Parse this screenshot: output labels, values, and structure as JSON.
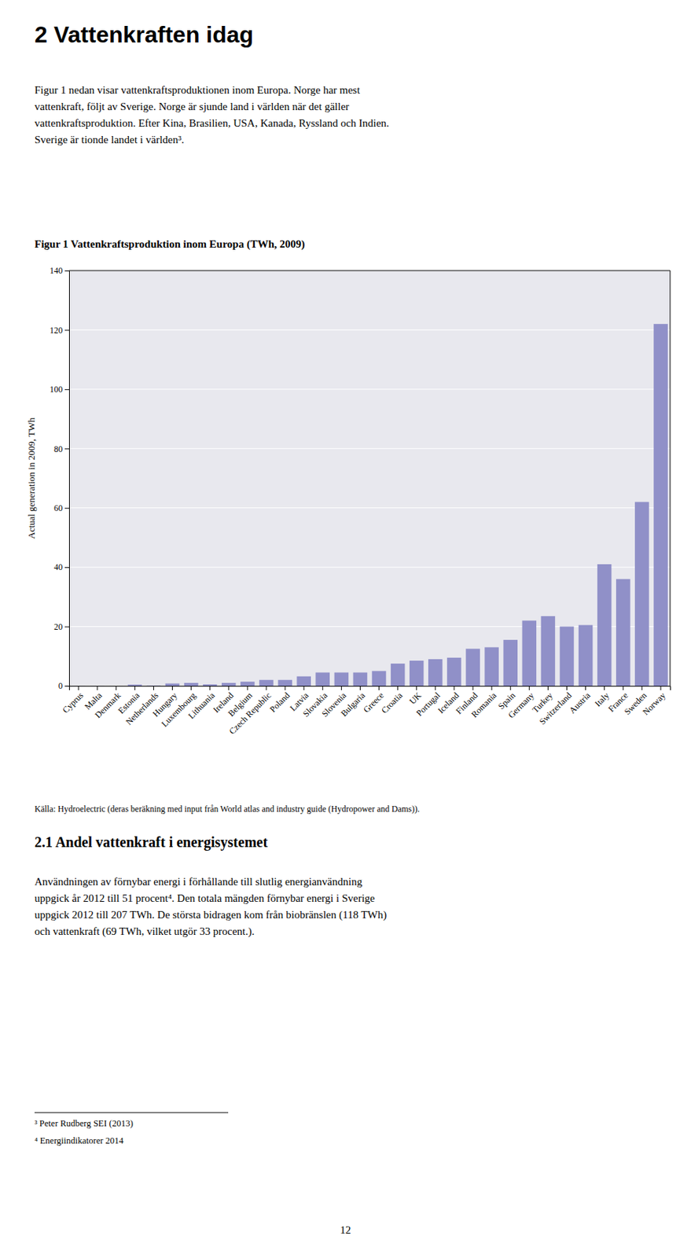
{
  "title_main": "2      Vattenkraften idag",
  "body_text": [
    "Figur 1 nedan visar vattenkraftsproduktionen inom Europa. Norge har mest",
    "vattenkraft, följt av Sverige. Norge är sjunde land i världen när det gäller",
    "vattenkraftsproduktion. Efter Kina, Brasilien, USA, Kanada, Ryssland och Indien.",
    "Sverige är tionde landet i världen³."
  ],
  "chart_data": {
    "type": "bar",
    "title": "Figur 1 Vattenkraftsproduktion inom Europa (TWh, 2009)",
    "y_label": "Actual generation in 2009, TWh",
    "categories": [
      "Cyprus",
      "Malta",
      "Denmark",
      "Estonia",
      "Netherlands",
      "Hungary",
      "Luxembourg",
      "Lithuania",
      "Ireland",
      "Belgium",
      "Czech Republic",
      "Poland",
      "Latvia",
      "Slovakia",
      "Slovenia",
      "Bulgaria",
      "Greece",
      "Croatia",
      "UK",
      "Portugal",
      "Iceland",
      "Finland",
      "Romania",
      "Spain",
      "Germany",
      "Turkey",
      "Switzerland",
      "Austria",
      "Italy",
      "France",
      "Sweden",
      "Norway"
    ],
    "values": [
      0.05,
      0.05,
      0.02,
      0.4,
      0.1,
      0.8,
      1.0,
      0.5,
      1.0,
      1.4,
      2.0,
      2.0,
      3.2,
      4.5,
      4.5,
      4.5,
      5.0,
      7.5,
      8.5,
      9.0,
      9.5,
      12.5,
      13.0,
      15.5,
      22.0,
      23.5,
      20.0,
      20.5,
      41.0,
      36.0,
      62.0,
      122.0
    ],
    "color": "#9090c8",
    "ylim": [
      0,
      140
    ],
    "yticks": [
      0,
      20,
      40,
      60,
      80,
      100,
      120,
      140
    ],
    "grid": true
  },
  "source_text": "Källa: Hydroelectric (deras beräkning med input från World atlas and industry guide (Hydropower and Dams)).",
  "section_title": "2.1      Andel vattenkraft i energisystemet",
  "body_text2": [
    "Användningen av förnybar energi i förhållande till slutlig energianvändning",
    "uppgick år 2012 till 51 procent⁴. Den totala mängden förnybar energi i Sverige",
    "uppgick 2012 till 207 TWh. De största bidragen kom från biobränslen (118 TWh)",
    "och vattenkraft (69 TWh, vilket utgör 33 procent.)."
  ],
  "footnotes": [
    "³ Peter Rudberg SEI (2013)",
    "⁴ Energiindikatorer 2014"
  ],
  "page_num": "12"
}
